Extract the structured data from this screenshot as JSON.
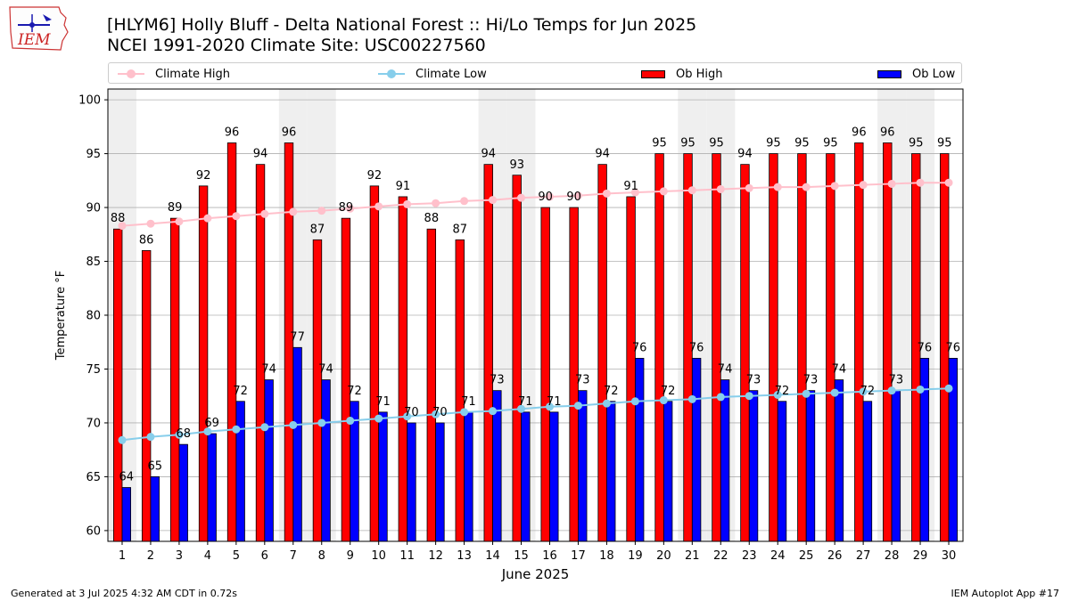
{
  "header": {
    "title_line1": "[HLYM6] Holly Bluff - Delta National Forest :: Hi/Lo Temps for Jun 2025",
    "title_line2": "NCEI 1991-2020 Climate Site: USC00227560",
    "logo_text": "IEM"
  },
  "legend": {
    "climate_high": "Climate High",
    "climate_low": "Climate Low",
    "ob_high": "Ob High",
    "ob_low": "Ob Low"
  },
  "footer": {
    "left": "Generated at 3 Jul 2025 4:32 AM CDT in 0.72s",
    "right": "IEM Autoplot App #17"
  },
  "colors": {
    "ob_high": "#ff0000",
    "ob_low": "#0000ff",
    "climate_high": "#ffc0cb",
    "climate_low": "#87ceeb",
    "weekend_shade": "#efefef"
  },
  "chart_data": {
    "type": "bar",
    "xlabel": "June 2025",
    "ylabel": "Temperature °F",
    "ylim": [
      59,
      101
    ],
    "yticks": [
      60,
      65,
      70,
      75,
      80,
      85,
      90,
      95,
      100
    ],
    "grid": true,
    "legend_position": "top",
    "categories": [
      "1",
      "2",
      "3",
      "4",
      "5",
      "6",
      "7",
      "8",
      "9",
      "10",
      "11",
      "12",
      "13",
      "14",
      "15",
      "16",
      "17",
      "18",
      "19",
      "20",
      "21",
      "22",
      "23",
      "24",
      "25",
      "26",
      "27",
      "28",
      "29",
      "30"
    ],
    "shaded_days": [
      "1",
      "7",
      "8",
      "14",
      "15",
      "21",
      "22",
      "28",
      "29"
    ],
    "series": [
      {
        "name": "Ob High",
        "kind": "bar",
        "values": [
          88,
          86,
          89,
          92,
          96,
          94,
          96,
          87,
          89,
          92,
          91,
          88,
          87,
          94,
          93,
          90,
          90,
          94,
          91,
          95,
          95,
          95,
          94,
          95,
          95,
          95,
          96,
          96,
          95,
          95
        ]
      },
      {
        "name": "Ob Low",
        "kind": "bar",
        "values": [
          64,
          65,
          68,
          69,
          72,
          74,
          77,
          74,
          72,
          71,
          70,
          70,
          71,
          73,
          71,
          71,
          73,
          72,
          76,
          72,
          76,
          74,
          73,
          72,
          73,
          74,
          72,
          73,
          76,
          76
        ]
      },
      {
        "name": "Climate High",
        "kind": "line",
        "values": [
          88.3,
          88.5,
          88.7,
          89.0,
          89.2,
          89.4,
          89.6,
          89.7,
          89.9,
          90.1,
          90.3,
          90.4,
          90.6,
          90.7,
          90.9,
          91.0,
          91.1,
          91.3,
          91.4,
          91.5,
          91.6,
          91.7,
          91.8,
          91.9,
          91.9,
          92.0,
          92.1,
          92.2,
          92.3,
          92.3
        ]
      },
      {
        "name": "Climate Low",
        "kind": "line",
        "values": [
          68.4,
          68.7,
          68.9,
          69.2,
          69.4,
          69.6,
          69.8,
          70.0,
          70.2,
          70.4,
          70.6,
          70.8,
          71.0,
          71.1,
          71.3,
          71.5,
          71.6,
          71.8,
          72.0,
          72.1,
          72.2,
          72.4,
          72.5,
          72.6,
          72.7,
          72.8,
          72.9,
          73.0,
          73.1,
          73.2
        ]
      }
    ]
  }
}
